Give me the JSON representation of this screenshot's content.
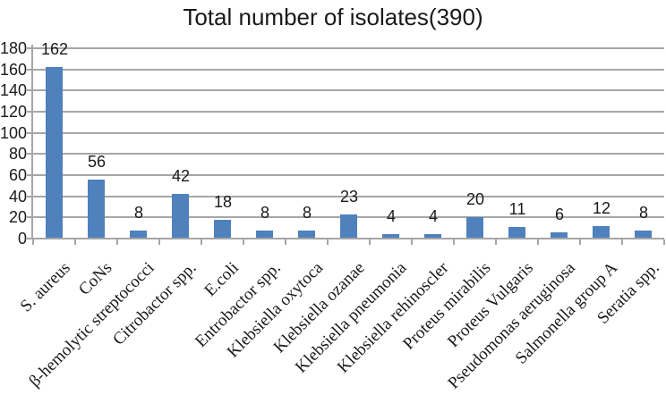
{
  "figure": {
    "title": "Total number of isolates(390)"
  },
  "chart_data": {
    "type": "bar",
    "title": "Total number of isolates(390)",
    "categories": [
      "S. aureus",
      "CoNs",
      "β-hemolytic streptococci",
      "Citrobactor spp.",
      "E.coli",
      "Entrobactor spp.",
      "Klebsiella oxytoca",
      "Klebsiella ozanae",
      "Klebsiella pneumonia",
      "Klebsiella rehinoscler",
      "Proteus mirabilis",
      "Proteus Vulgaris",
      "Pseudomonas aeruginosa",
      "Salmonella group A",
      "Seratia spp."
    ],
    "values": [
      162,
      56,
      8,
      42,
      18,
      8,
      8,
      23,
      4,
      4,
      20,
      11,
      6,
      12,
      8
    ],
    "xlabel": "",
    "ylabel": "",
    "ylim": [
      0,
      180
    ],
    "yticks": [
      0,
      20,
      40,
      60,
      80,
      100,
      120,
      140,
      160,
      180
    ],
    "grid": true,
    "legend": "none",
    "value_labels": true,
    "colors": {
      "bar": "#4f81bd",
      "gridline": "#a6a6a6",
      "axis": "#a6a6a6",
      "text": "#1a1a1a"
    }
  }
}
